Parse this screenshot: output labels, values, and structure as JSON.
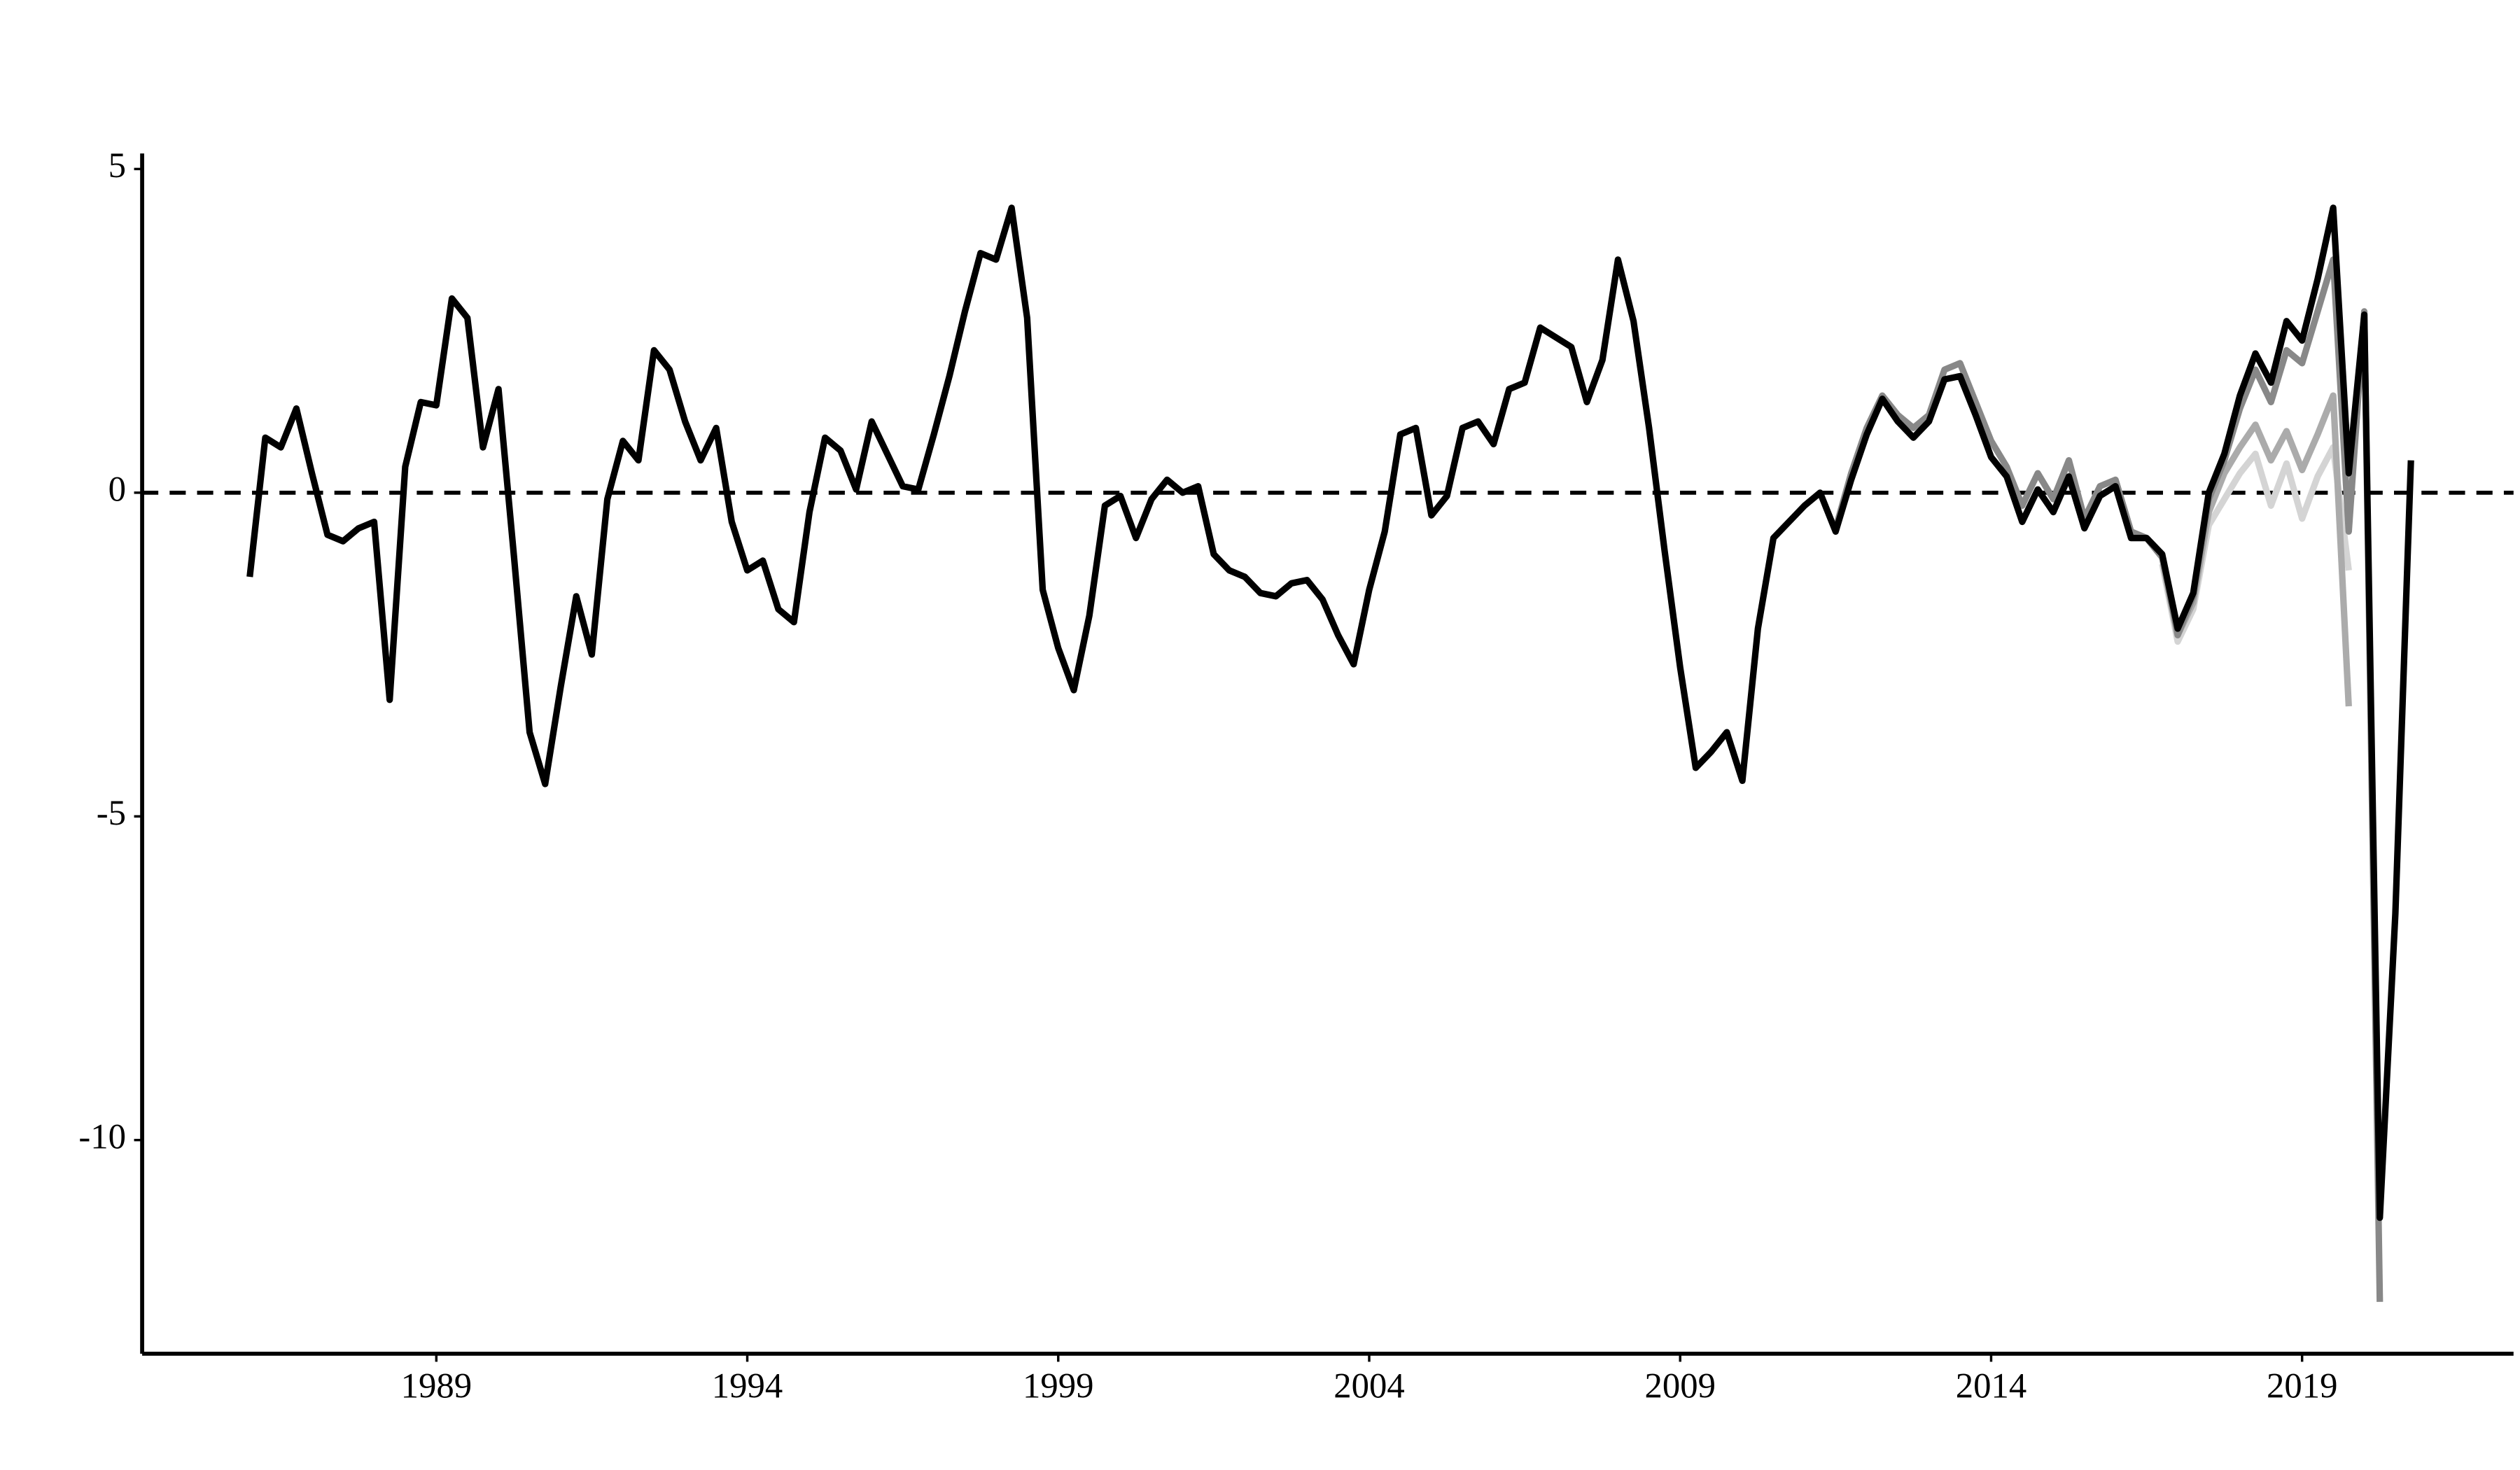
{
  "chart_data": {
    "type": "line",
    "xlim": [
      1984.27,
      2022.4
    ],
    "xticks": [
      1989,
      1994,
      1999,
      2004,
      2009,
      2014,
      2019
    ],
    "ylim": [
      -13.3,
      5.24
    ],
    "yticks": [
      -10,
      -5,
      0,
      5
    ],
    "hline": 0,
    "series": [
      {
        "color": "#d4d4d4",
        "x": [
          2016.75,
          2017,
          2017.25,
          2017.5,
          2017.75,
          2018,
          2018.25,
          2018.5,
          2018.75,
          2019,
          2019.25,
          2019.5,
          2019.75
        ],
        "values": [
          -1.1,
          -2.3,
          -1.8,
          -0.5,
          -0.1,
          0.3,
          0.6,
          -0.2,
          0.45,
          -0.4,
          0.25,
          0.7,
          -1.2
        ]
      },
      {
        "color": "#ababab",
        "x": [
          2016.75,
          2017,
          2017.25,
          2017.5,
          2017.75,
          2018,
          2018.25,
          2018.5,
          2018.75,
          2019,
          2019.25,
          2019.5,
          2019.75
        ],
        "values": [
          -1.0,
          -2.2,
          -1.7,
          -0.3,
          0.3,
          0.7,
          1.05,
          0.5,
          0.95,
          0.35,
          0.9,
          1.5,
          -3.3
        ]
      },
      {
        "color": "#888888",
        "x": [
          2011.5,
          2011.75,
          2012,
          2012.25,
          2012.5,
          2012.75,
          2013,
          2013.25,
          2013.5,
          2013.75,
          2014,
          2014.25,
          2014.5,
          2014.75,
          2015,
          2015.25,
          2015.5,
          2015.75,
          2016,
          2016.25,
          2016.5,
          2016.75,
          2017,
          2017.25,
          2017.5,
          2017.75,
          2018,
          2018.25,
          2018.5,
          2018.75,
          2019,
          2019.25,
          2019.5,
          2019.75,
          2020,
          2020.25
        ],
        "values": [
          -0.55,
          0.3,
          1.0,
          1.5,
          1.2,
          1.0,
          1.2,
          1.9,
          2.0,
          1.4,
          0.8,
          0.4,
          -0.2,
          0.3,
          -0.1,
          0.5,
          -0.4,
          0.1,
          0.2,
          -0.6,
          -0.7,
          -1.0,
          -2.2,
          -1.6,
          -0.1,
          0.5,
          1.3,
          1.9,
          1.4,
          2.2,
          2.0,
          2.8,
          3.6,
          -0.6,
          2.8,
          -12.5
        ]
      },
      {
        "color": "#000000",
        "x": [
          1986,
          1986.25,
          1986.5,
          1986.75,
          1987,
          1987.25,
          1987.5,
          1987.75,
          1988,
          1988.25,
          1988.5,
          1988.75,
          1989,
          1989.25,
          1989.5,
          1989.75,
          1990,
          1990.25,
          1990.5,
          1990.75,
          1991,
          1991.25,
          1991.5,
          1991.75,
          1992,
          1992.25,
          1992.5,
          1992.75,
          1993,
          1993.25,
          1993.5,
          1993.75,
          1994,
          1994.25,
          1994.5,
          1994.75,
          1995,
          1995.25,
          1995.5,
          1995.75,
          1996,
          1996.25,
          1996.5,
          1996.75,
          1997,
          1997.25,
          1997.5,
          1997.75,
          1998,
          1998.25,
          1998.5,
          1998.75,
          1999,
          1999.25,
          1999.5,
          1999.75,
          2000,
          2000.25,
          2000.5,
          2000.75,
          2001,
          2001.25,
          2001.5,
          2001.75,
          2002,
          2002.25,
          2002.5,
          2002.75,
          2003,
          2003.25,
          2003.5,
          2003.75,
          2004,
          2004.25,
          2004.5,
          2004.75,
          2005,
          2005.25,
          2005.5,
          2005.75,
          2006,
          2006.25,
          2006.5,
          2006.75,
          2007,
          2007.25,
          2007.5,
          2007.75,
          2008,
          2008.25,
          2008.5,
          2008.75,
          2009,
          2009.25,
          2009.5,
          2009.75,
          2010,
          2010.25,
          2010.5,
          2010.75,
          2011,
          2011.25,
          2011.5,
          2011.75,
          2012,
          2012.25,
          2012.5,
          2012.75,
          2013,
          2013.25,
          2013.5,
          2013.75,
          2014,
          2014.25,
          2014.5,
          2014.75,
          2015,
          2015.25,
          2015.5,
          2015.75,
          2016,
          2016.25,
          2016.5,
          2016.75,
          2017,
          2017.25,
          2017.5,
          2017.75,
          2018,
          2018.25,
          2018.5,
          2018.75,
          2019,
          2019.25,
          2019.5,
          2019.75,
          2020,
          2020.25,
          2020.5,
          2020.75
        ],
        "values": [
          -1.3,
          0.85,
          0.7,
          1.3,
          0.3,
          -0.65,
          -0.75,
          -0.55,
          -0.45,
          -3.2,
          0.4,
          1.4,
          1.35,
          3.0,
          2.7,
          0.7,
          1.6,
          -1.0,
          -3.7,
          -4.5,
          -3.0,
          -1.6,
          -2.5,
          -0.1,
          0.8,
          0.5,
          2.2,
          1.9,
          1.1,
          0.5,
          1.0,
          -0.45,
          -1.2,
          -1.05,
          -1.8,
          -2.0,
          -0.3,
          0.85,
          0.65,
          0.05,
          1.1,
          0.6,
          0.1,
          0.05,
          0.9,
          1.8,
          2.8,
          3.7,
          3.6,
          4.4,
          2.7,
          -1.5,
          -2.4,
          -3.05,
          -1.9,
          -0.2,
          -0.05,
          -0.7,
          -0.1,
          0.2,
          0.0,
          0.1,
          -0.95,
          -1.2,
          -1.3,
          -1.55,
          -1.6,
          -1.4,
          -1.35,
          -1.65,
          -2.2,
          -2.65,
          -1.5,
          -0.6,
          0.9,
          1.0,
          -0.35,
          -0.05,
          1.0,
          1.1,
          0.75,
          1.6,
          1.7,
          2.55,
          2.4,
          2.25,
          1.4,
          2.05,
          3.6,
          2.65,
          1.0,
          -0.9,
          -2.7,
          -4.25,
          -4.0,
          -3.7,
          -4.45,
          -2.1,
          -0.7,
          -0.45,
          -0.2,
          0.0,
          -0.6,
          0.2,
          0.9,
          1.45,
          1.1,
          0.85,
          1.1,
          1.75,
          1.8,
          1.2,
          0.55,
          0.25,
          -0.45,
          0.05,
          -0.3,
          0.25,
          -0.55,
          -0.05,
          0.1,
          -0.7,
          -0.7,
          -0.95,
          -2.1,
          -1.55,
          0.0,
          0.6,
          1.5,
          2.15,
          1.7,
          2.65,
          2.35,
          3.3,
          4.4,
          0.3,
          2.75,
          -11.2,
          -6.5,
          0.5
        ]
      }
    ]
  }
}
